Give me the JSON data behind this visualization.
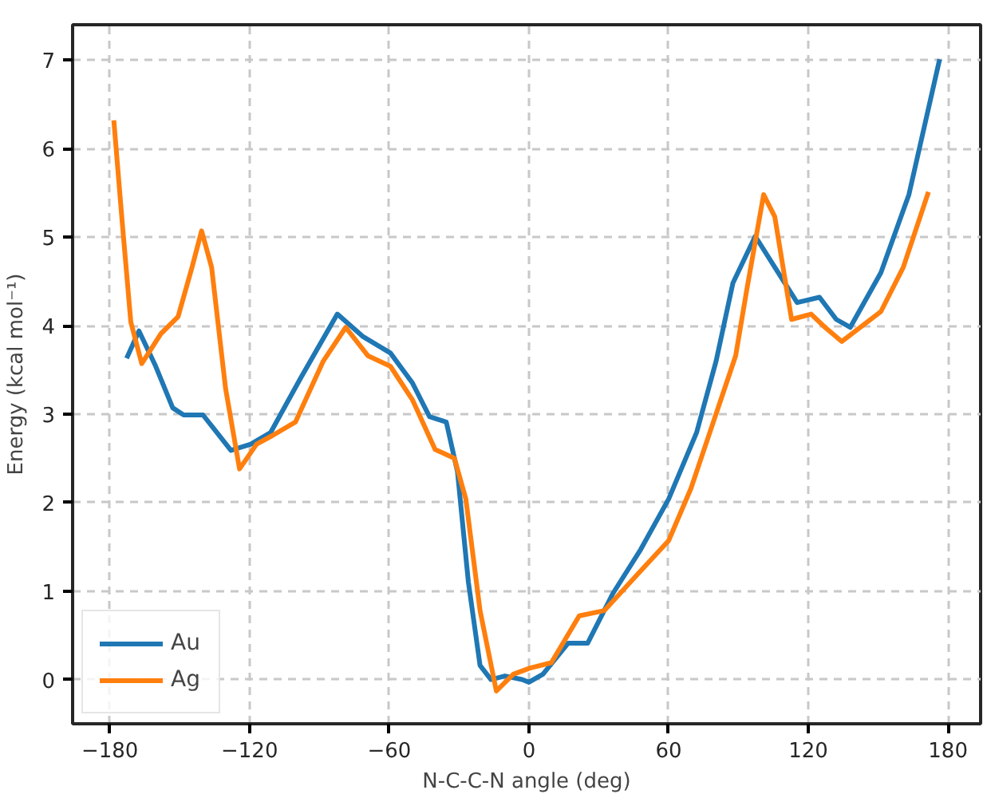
{
  "chart_data": {
    "type": "line",
    "xlabel": "N-C-C-N angle (deg)",
    "ylabel": "Energy (kcal mol⁻¹)",
    "xlim": [
      -196,
      194
    ],
    "ylim": [
      -0.5,
      7.4
    ],
    "xticks": [
      {
        "value": -180,
        "label": "−180"
      },
      {
        "value": -120,
        "label": "−120"
      },
      {
        "value": -60,
        "label": "−60"
      },
      0,
      60,
      120,
      180
    ],
    "yticks": [
      0,
      1,
      2,
      3,
      4,
      5,
      6,
      7
    ],
    "grid": true,
    "legend": "bottom left",
    "line_style": "solid",
    "marker": "none",
    "series": [
      {
        "name": "Au",
        "color": "#1f77b4",
        "x": [
          -172.8,
          -167.5,
          -160.3,
          -153,
          -148.3,
          -140,
          -134,
          -128,
          -119.5,
          -111,
          -98,
          -82.3,
          -71.5,
          -59.5,
          -50,
          -42.7,
          -35.5,
          -30.7,
          -26,
          -21,
          -16.3,
          -10.3,
          -3,
          0,
          6,
          16.8,
          25.2,
          36,
          48,
          60,
          72,
          80.4,
          87.6,
          97.2,
          105.6,
          115.2,
          124.8,
          132,
          138,
          151.2,
          163.2,
          176.4
        ],
        "values": [
          3.63,
          3.94,
          3.54,
          3.07,
          2.99,
          2.99,
          2.79,
          2.59,
          2.66,
          2.79,
          3.41,
          4.13,
          3.88,
          3.69,
          3.35,
          2.97,
          2.91,
          2.35,
          1.1,
          0.16,
          0.0,
          0.04,
          0.0,
          -0.03,
          0.06,
          0.41,
          0.41,
          0.97,
          1.47,
          2.04,
          2.79,
          3.6,
          4.48,
          5.01,
          4.66,
          4.26,
          4.32,
          4.07,
          3.98,
          4.6,
          5.48,
          7.01
        ]
      },
      {
        "name": "Ag",
        "color": "#ff7f0e",
        "x": [
          -178.3,
          -174.7,
          -171,
          -166.3,
          -158,
          -150.7,
          -144.7,
          -140.6,
          -136.3,
          -130.3,
          -124.3,
          -117,
          -110,
          -100.3,
          -88.3,
          -78.7,
          -69.2,
          -59.5,
          -50,
          -40.3,
          -32,
          -27.1,
          -21,
          -14,
          -6.7,
          0.5,
          9.6,
          21.6,
          32.4,
          45.6,
          60,
          69.6,
          79.2,
          88.8,
          93.6,
          100.8,
          105.6,
          112.8,
          121.2,
          127.2,
          134.4,
          151.2,
          160.8,
          171.6
        ],
        "values": [
          6.32,
          5.17,
          4.04,
          3.57,
          3.91,
          4.1,
          4.66,
          5.07,
          4.66,
          3.29,
          2.38,
          2.66,
          2.76,
          2.91,
          3.6,
          3.98,
          3.66,
          3.54,
          3.16,
          2.6,
          2.5,
          2.04,
          0.78,
          -0.13,
          0.06,
          0.13,
          0.19,
          0.72,
          0.78,
          1.16,
          1.57,
          2.16,
          2.91,
          3.66,
          4.41,
          5.48,
          5.23,
          4.07,
          4.13,
          3.98,
          3.82,
          4.16,
          4.66,
          5.51
        ]
      }
    ]
  }
}
